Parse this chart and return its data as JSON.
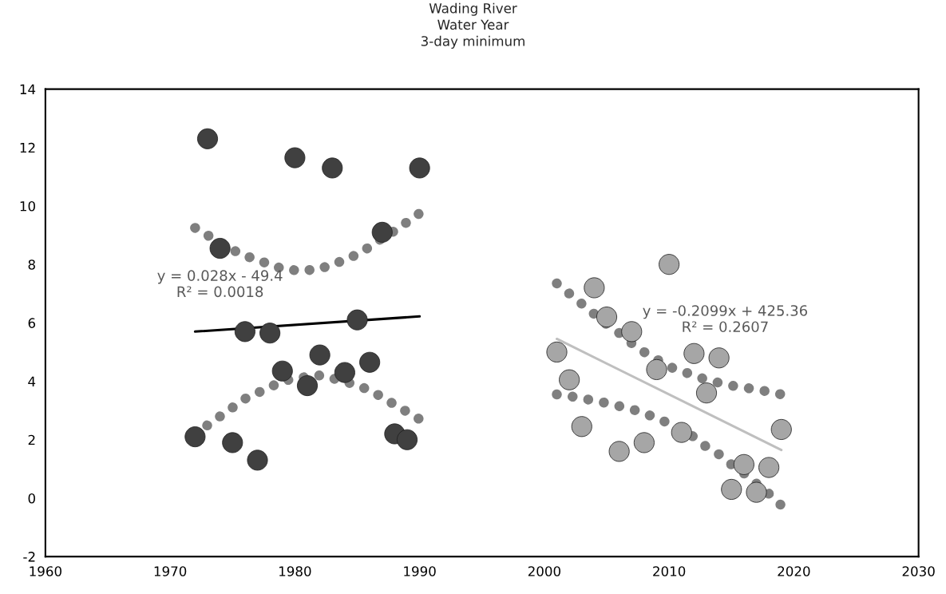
{
  "chart_data": {
    "type": "scatter",
    "title": "Wading River\nWater Year\n3-day minimum",
    "xlim": [
      1960,
      2030
    ],
    "xticks": [
      1960,
      1970,
      1980,
      1990,
      2000,
      2010,
      2020,
      2030
    ],
    "ylim": [
      -2,
      14
    ],
    "yticks": [
      -2,
      0,
      2,
      4,
      6,
      8,
      10,
      12,
      14
    ],
    "grid": false,
    "series": [
      {
        "marker": "circle",
        "color": "#404040",
        "x": [
          1972,
          1973,
          1974,
          1975,
          1976,
          1977,
          1978,
          1979,
          1980,
          1981,
          1982,
          1983,
          1984,
          1985,
          1986,
          1987,
          1988,
          1989,
          1990
        ],
        "values": [
          2.1,
          12.3,
          8.55,
          1.9,
          5.7,
          1.3,
          5.65,
          4.35,
          11.65,
          3.85,
          4.9,
          11.3,
          4.3,
          6.1,
          4.65,
          9.1,
          2.2,
          2.0,
          11.3
        ]
      },
      {
        "marker": "circle",
        "color": "#a6a6a6",
        "x": [
          2001,
          2002,
          2003,
          2004,
          2005,
          2006,
          2007,
          2008,
          2009,
          2010,
          2011,
          2012,
          2013,
          2014,
          2015,
          2016,
          2017,
          2018,
          2019
        ],
        "values": [
          5.0,
          4.05,
          2.45,
          7.2,
          6.2,
          1.6,
          5.7,
          1.9,
          4.4,
          8.0,
          2.25,
          4.95,
          3.6,
          4.8,
          0.3,
          1.15,
          0.2,
          1.05,
          2.35
        ]
      },
      {
        "type": "line",
        "line_style": "dotted",
        "color": "#7f7f7f",
        "x": [
          1972,
          1973,
          1974,
          1975,
          1976,
          1977,
          1978,
          1979,
          1980,
          1981,
          1982,
          1983,
          1984,
          1985,
          1986,
          1987,
          1988,
          1989,
          1990
        ],
        "values": [
          9.25,
          9.0,
          8.75,
          8.5,
          8.3,
          8.15,
          8.0,
          7.85,
          7.8,
          7.8,
          7.85,
          8.0,
          8.15,
          8.35,
          8.6,
          8.9,
          9.15,
          9.45,
          9.75
        ]
      },
      {
        "type": "line",
        "line_style": "dotted",
        "color": "#7f7f7f",
        "x": [
          1972,
          1973,
          1974,
          1975,
          1976,
          1977,
          1978,
          1979,
          1980,
          1981,
          1982,
          1983,
          1984,
          1985,
          1986,
          1987,
          1988,
          1989,
          1990
        ],
        "values": [
          2.15,
          2.5,
          2.8,
          3.1,
          3.4,
          3.6,
          3.8,
          4.0,
          4.1,
          4.15,
          4.2,
          4.1,
          4.0,
          3.85,
          3.7,
          3.45,
          3.2,
          2.95,
          2.7
        ]
      },
      {
        "type": "line",
        "line_style": "dotted",
        "color": "#7f7f7f",
        "x": [
          2001,
          2002,
          2003,
          2004,
          2005,
          2006,
          2007,
          2008,
          2009,
          2010,
          2011,
          2012,
          2013,
          2014,
          2015,
          2016,
          2017,
          2018,
          2019
        ],
        "values": [
          7.35,
          7.0,
          6.65,
          6.3,
          5.95,
          5.65,
          5.3,
          5.0,
          4.75,
          4.5,
          4.35,
          4.2,
          4.05,
          3.95,
          3.85,
          3.8,
          3.7,
          3.65,
          3.55
        ]
      },
      {
        "type": "line",
        "line_style": "dotted",
        "color": "#7f7f7f",
        "x": [
          2001,
          2002,
          2003,
          2004,
          2005,
          2006,
          2007,
          2008,
          2009,
          2010,
          2011,
          2012,
          2013,
          2014,
          2015,
          2016,
          2017,
          2018,
          2019
        ],
        "values": [
          3.55,
          3.5,
          3.4,
          3.35,
          3.25,
          3.15,
          3.05,
          2.9,
          2.75,
          2.55,
          2.3,
          2.1,
          1.75,
          1.5,
          1.15,
          0.85,
          0.5,
          0.15,
          -0.25
        ]
      },
      {
        "type": "line",
        "line_style": "solid",
        "color": "#000000",
        "x": [
          1972,
          1990
        ],
        "values": [
          5.7,
          6.22
        ]
      },
      {
        "type": "line",
        "line_style": "solid",
        "color": "#bfbfbf",
        "x": [
          2001,
          2019
        ],
        "values": [
          5.45,
          1.65
        ]
      }
    ],
    "annotations": [
      "y = 0.028x - 49.4\nR² = 0.0018",
      "y = -0.2099x + 425.36\nR² = 0.2607"
    ]
  }
}
